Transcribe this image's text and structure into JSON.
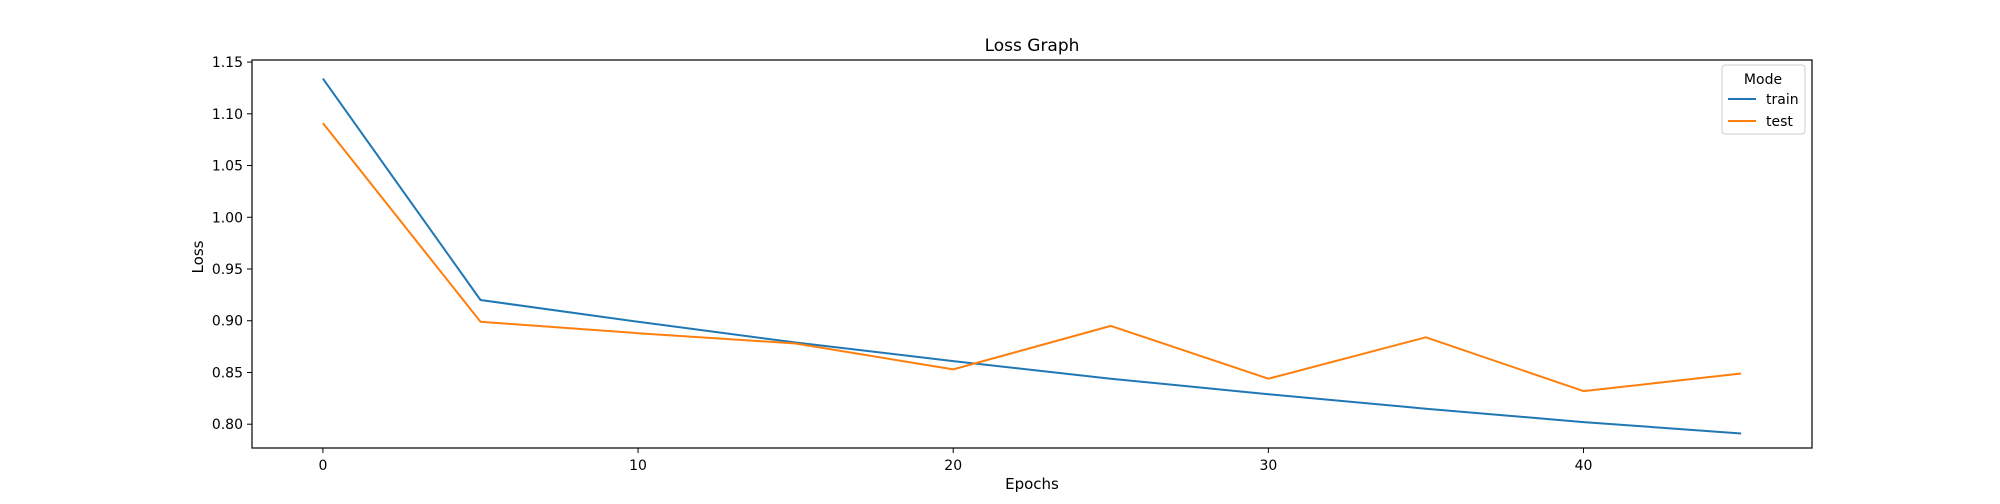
{
  "chart_data": {
    "type": "line",
    "title": "Loss Graph",
    "xlabel": "Epochs",
    "ylabel": "Loss",
    "x": [
      0,
      5,
      10,
      15,
      20,
      25,
      30,
      35,
      40,
      45
    ],
    "xlim": [
      -2.25,
      47.25
    ],
    "ylim": [
      0.777,
      1.152
    ],
    "xticks": [
      0,
      10,
      20,
      30,
      40
    ],
    "yticks": [
      0.8,
      0.85,
      0.9,
      0.95,
      1.0,
      1.05,
      1.1,
      1.15
    ],
    "grid": false,
    "legend": {
      "title": "Mode",
      "placement": "top-right"
    },
    "series": [
      {
        "name": "train",
        "color": "#1f77b4",
        "values": [
          1.134,
          0.92,
          0.899,
          0.879,
          0.861,
          0.844,
          0.829,
          0.815,
          0.802,
          0.791
        ]
      },
      {
        "name": "test",
        "color": "#ff7f0e",
        "values": [
          1.091,
          0.899,
          0.888,
          0.878,
          0.853,
          0.895,
          0.844,
          0.884,
          0.832,
          0.849
        ]
      }
    ]
  }
}
